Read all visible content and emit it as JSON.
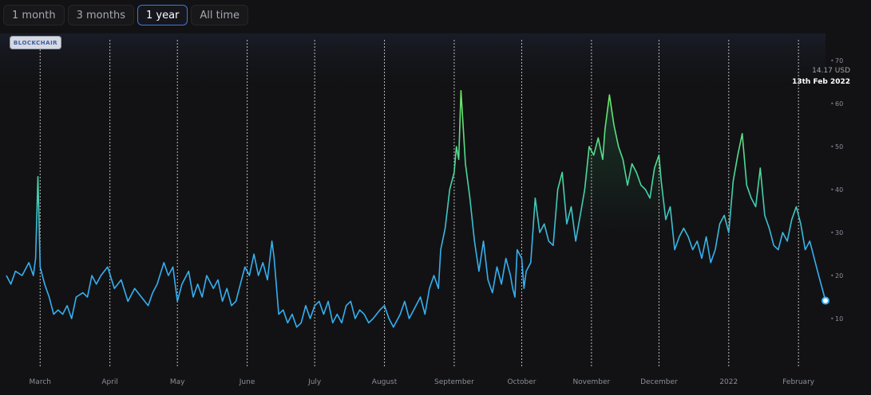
{
  "range_tabs": [
    {
      "label": "1 month",
      "active": false
    },
    {
      "label": "3 months",
      "active": false
    },
    {
      "label": "1 year",
      "active": true
    },
    {
      "label": "All time",
      "active": false
    }
  ],
  "watermark": "BLOCKCHAIR",
  "tooltip": {
    "value": "14.17 USD",
    "date": "13th Feb 2022"
  },
  "colors": {
    "background": "#121214",
    "line_low": "#35aff0",
    "line_high": "#6de35a",
    "accent": "#3e78d8"
  },
  "chart_data": {
    "type": "line",
    "title": "",
    "xlabel": "",
    "ylabel": "",
    "ylim": [
      0,
      70
    ],
    "y_ticks": [
      10,
      20,
      30,
      40,
      50,
      60,
      70
    ],
    "y_tick_labels": [
      "10",
      "20",
      "30",
      "40",
      "50",
      "60",
      "70"
    ],
    "grid": "vertical dashed at month starts",
    "x_range": [
      "2021-02-14",
      "2022-02-13"
    ],
    "x_ticks": [
      {
        "date": "2021-03-01",
        "label": "March"
      },
      {
        "date": "2021-04-01",
        "label": "April"
      },
      {
        "date": "2021-05-01",
        "label": "May"
      },
      {
        "date": "2021-06-01",
        "label": "June"
      },
      {
        "date": "2021-07-01",
        "label": "July"
      },
      {
        "date": "2021-08-01",
        "label": "August"
      },
      {
        "date": "2021-09-01",
        "label": "September"
      },
      {
        "date": "2021-10-01",
        "label": "October"
      },
      {
        "date": "2021-11-01",
        "label": "November"
      },
      {
        "date": "2021-12-01",
        "label": "December"
      },
      {
        "date": "2022-01-01",
        "label": "2022"
      },
      {
        "date": "2022-02-01",
        "label": "February"
      }
    ],
    "series": [
      {
        "points": [
          [
            "2021-02-14",
            20
          ],
          [
            "2021-02-16",
            18
          ],
          [
            "2021-02-18",
            21
          ],
          [
            "2021-02-21",
            20
          ],
          [
            "2021-02-24",
            23
          ],
          [
            "2021-02-26",
            20
          ],
          [
            "2021-02-27",
            24
          ],
          [
            "2021-02-28",
            43
          ],
          [
            "2021-03-01",
            22
          ],
          [
            "2021-03-03",
            18
          ],
          [
            "2021-03-05",
            15
          ],
          [
            "2021-03-07",
            11
          ],
          [
            "2021-03-09",
            12
          ],
          [
            "2021-03-11",
            11
          ],
          [
            "2021-03-13",
            13
          ],
          [
            "2021-03-15",
            10
          ],
          [
            "2021-03-17",
            15
          ],
          [
            "2021-03-20",
            16
          ],
          [
            "2021-03-22",
            15
          ],
          [
            "2021-03-24",
            20
          ],
          [
            "2021-03-26",
            18
          ],
          [
            "2021-03-28",
            20
          ],
          [
            "2021-03-31",
            22
          ],
          [
            "2021-04-03",
            17
          ],
          [
            "2021-04-06",
            19
          ],
          [
            "2021-04-09",
            14
          ],
          [
            "2021-04-12",
            17
          ],
          [
            "2021-04-15",
            15
          ],
          [
            "2021-04-18",
            13
          ],
          [
            "2021-04-20",
            16
          ],
          [
            "2021-04-22",
            18
          ],
          [
            "2021-04-25",
            23
          ],
          [
            "2021-04-27",
            20
          ],
          [
            "2021-04-29",
            22
          ],
          [
            "2021-05-01",
            14
          ],
          [
            "2021-05-03",
            18
          ],
          [
            "2021-05-06",
            21
          ],
          [
            "2021-05-08",
            15
          ],
          [
            "2021-05-10",
            18
          ],
          [
            "2021-05-12",
            15
          ],
          [
            "2021-05-14",
            20
          ],
          [
            "2021-05-17",
            17
          ],
          [
            "2021-05-19",
            19
          ],
          [
            "2021-05-21",
            14
          ],
          [
            "2021-05-23",
            17
          ],
          [
            "2021-05-25",
            13
          ],
          [
            "2021-05-27",
            14
          ],
          [
            "2021-05-29",
            18
          ],
          [
            "2021-05-31",
            22
          ],
          [
            "2021-06-02",
            20
          ],
          [
            "2021-06-04",
            25
          ],
          [
            "2021-06-06",
            20
          ],
          [
            "2021-06-08",
            23
          ],
          [
            "2021-06-10",
            19
          ],
          [
            "2021-06-12",
            28
          ],
          [
            "2021-06-13",
            24
          ],
          [
            "2021-06-15",
            11
          ],
          [
            "2021-06-17",
            12
          ],
          [
            "2021-06-19",
            9
          ],
          [
            "2021-06-21",
            11
          ],
          [
            "2021-06-23",
            8
          ],
          [
            "2021-06-25",
            9
          ],
          [
            "2021-06-27",
            13
          ],
          [
            "2021-06-29",
            10
          ],
          [
            "2021-07-01",
            13
          ],
          [
            "2021-07-03",
            14
          ],
          [
            "2021-07-05",
            11
          ],
          [
            "2021-07-07",
            14
          ],
          [
            "2021-07-09",
            9
          ],
          [
            "2021-07-11",
            11
          ],
          [
            "2021-07-13",
            9
          ],
          [
            "2021-07-15",
            13
          ],
          [
            "2021-07-17",
            14
          ],
          [
            "2021-07-19",
            10
          ],
          [
            "2021-07-21",
            12
          ],
          [
            "2021-07-23",
            11
          ],
          [
            "2021-07-25",
            9
          ],
          [
            "2021-07-27",
            10
          ],
          [
            "2021-07-30",
            12
          ],
          [
            "2021-08-01",
            13
          ],
          [
            "2021-08-03",
            10
          ],
          [
            "2021-08-05",
            8
          ],
          [
            "2021-08-08",
            11
          ],
          [
            "2021-08-10",
            14
          ],
          [
            "2021-08-12",
            10
          ],
          [
            "2021-08-14",
            12
          ],
          [
            "2021-08-17",
            15
          ],
          [
            "2021-08-19",
            11
          ],
          [
            "2021-08-21",
            17
          ],
          [
            "2021-08-23",
            20
          ],
          [
            "2021-08-25",
            17
          ],
          [
            "2021-08-26",
            26
          ],
          [
            "2021-08-28",
            31
          ],
          [
            "2021-08-30",
            40
          ],
          [
            "2021-09-01",
            44
          ],
          [
            "2021-09-02",
            50
          ],
          [
            "2021-09-03",
            47
          ],
          [
            "2021-09-04",
            63
          ],
          [
            "2021-09-06",
            46
          ],
          [
            "2021-09-08",
            38
          ],
          [
            "2021-09-10",
            28
          ],
          [
            "2021-09-12",
            21
          ],
          [
            "2021-09-14",
            28
          ],
          [
            "2021-09-16",
            19
          ],
          [
            "2021-09-18",
            16
          ],
          [
            "2021-09-20",
            22
          ],
          [
            "2021-09-22",
            18
          ],
          [
            "2021-09-24",
            24
          ],
          [
            "2021-09-26",
            20
          ],
          [
            "2021-09-27",
            17
          ],
          [
            "2021-09-28",
            15
          ],
          [
            "2021-09-29",
            26
          ],
          [
            "2021-10-01",
            24
          ],
          [
            "2021-10-02",
            17
          ],
          [
            "2021-10-03",
            21
          ],
          [
            "2021-10-05",
            23
          ],
          [
            "2021-10-07",
            38
          ],
          [
            "2021-10-09",
            30
          ],
          [
            "2021-10-11",
            32
          ],
          [
            "2021-10-13",
            28
          ],
          [
            "2021-10-15",
            27
          ],
          [
            "2021-10-17",
            40
          ],
          [
            "2021-10-19",
            44
          ],
          [
            "2021-10-21",
            32
          ],
          [
            "2021-10-23",
            36
          ],
          [
            "2021-10-25",
            28
          ],
          [
            "2021-10-27",
            34
          ],
          [
            "2021-10-29",
            40
          ],
          [
            "2021-10-31",
            50
          ],
          [
            "2021-11-02",
            48
          ],
          [
            "2021-11-04",
            52
          ],
          [
            "2021-11-06",
            47
          ],
          [
            "2021-11-07",
            54
          ],
          [
            "2021-11-09",
            62
          ],
          [
            "2021-11-11",
            55
          ],
          [
            "2021-11-13",
            50
          ],
          [
            "2021-11-15",
            47
          ],
          [
            "2021-11-17",
            41
          ],
          [
            "2021-11-19",
            46
          ],
          [
            "2021-11-21",
            44
          ],
          [
            "2021-11-23",
            41
          ],
          [
            "2021-11-25",
            40
          ],
          [
            "2021-11-27",
            38
          ],
          [
            "2021-11-29",
            45
          ],
          [
            "2021-12-01",
            48
          ],
          [
            "2021-12-02",
            42
          ],
          [
            "2021-12-04",
            33
          ],
          [
            "2021-12-06",
            36
          ],
          [
            "2021-12-08",
            26
          ],
          [
            "2021-12-10",
            29
          ],
          [
            "2021-12-12",
            31
          ],
          [
            "2021-12-14",
            29
          ],
          [
            "2021-12-16",
            26
          ],
          [
            "2021-12-18",
            28
          ],
          [
            "2021-12-20",
            24
          ],
          [
            "2021-12-22",
            29
          ],
          [
            "2021-12-24",
            23
          ],
          [
            "2021-12-26",
            26
          ],
          [
            "2021-12-28",
            32
          ],
          [
            "2021-12-30",
            34
          ],
          [
            "2022-01-01",
            30
          ],
          [
            "2022-01-03",
            42
          ],
          [
            "2022-01-05",
            48
          ],
          [
            "2022-01-07",
            53
          ],
          [
            "2022-01-09",
            41
          ],
          [
            "2022-01-11",
            38
          ],
          [
            "2022-01-13",
            36
          ],
          [
            "2022-01-15",
            45
          ],
          [
            "2022-01-17",
            34
          ],
          [
            "2022-01-19",
            31
          ],
          [
            "2022-01-21",
            27
          ],
          [
            "2022-01-23",
            26
          ],
          [
            "2022-01-25",
            30
          ],
          [
            "2022-01-27",
            28
          ],
          [
            "2022-01-29",
            33
          ],
          [
            "2022-01-31",
            36
          ],
          [
            "2022-02-02",
            32
          ],
          [
            "2022-02-04",
            26
          ],
          [
            "2022-02-06",
            28
          ],
          [
            "2022-02-08",
            24
          ],
          [
            "2022-02-10",
            20
          ],
          [
            "2022-02-13",
            14.17
          ]
        ]
      }
    ]
  }
}
